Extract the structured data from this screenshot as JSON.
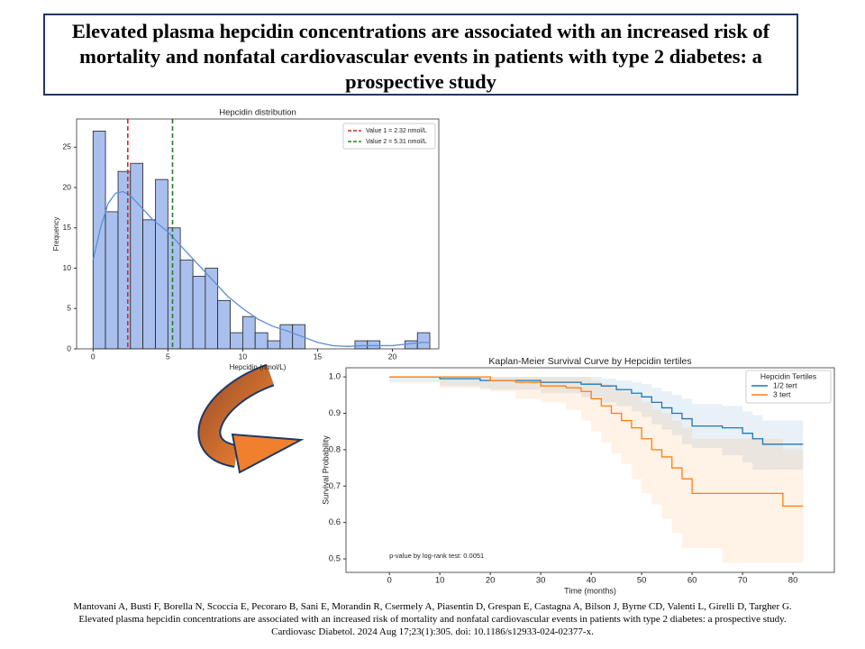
{
  "header": {
    "title": "Elevated plasma hepcidin concentrations are associated with an increased risk of mortality and nonfatal cardiovascular events in patients with type 2 diabetes: a prospective study"
  },
  "chart_data": [
    {
      "type": "histogram",
      "title": "Hepcidin distribution",
      "x_label": "Hepcidin (nmol/L)",
      "y_label": "Frequency",
      "bins": [
        0,
        0.83,
        1.67,
        2.5,
        3.33,
        4.17,
        5,
        5.83,
        6.67,
        7.5,
        8.33,
        9.17,
        10,
        10.83,
        11.67,
        12.5,
        13.33,
        14.17,
        15,
        15.83,
        16.67,
        17.5,
        18.33,
        19.17,
        20,
        20.83,
        21.67,
        22.5
      ],
      "values": [
        27,
        17,
        22,
        23,
        16,
        21,
        15,
        11,
        9,
        10,
        6,
        2,
        4,
        2,
        1,
        3,
        3,
        0,
        0,
        0,
        0,
        1,
        1,
        0,
        0,
        1,
        2
      ],
      "color": "#a9c0ee",
      "edge_color": "#222222",
      "kde": {
        "color": "#5b8fd8",
        "x": [
          0,
          0.5,
          1,
          1.5,
          2,
          2.5,
          3,
          3.5,
          4,
          5,
          6,
          7,
          8,
          9,
          10,
          11,
          12,
          13,
          14,
          15,
          16,
          17,
          18,
          19,
          20,
          21,
          22,
          22.5
        ],
        "values": [
          11,
          15,
          18,
          19.3,
          19.5,
          19,
          18,
          17,
          16,
          14.5,
          12.5,
          10.5,
          8.5,
          6.5,
          5,
          3.7,
          2.8,
          2.2,
          1.5,
          0.8,
          0.4,
          0.3,
          0.4,
          0.4,
          0.4,
          0.6,
          0.8,
          0.8
        ]
      },
      "vlines": [
        {
          "value": 2.32,
          "label": "Value 1 = 2.32 nmol/L",
          "color": "#d62728"
        },
        {
          "value": 5.31,
          "label": "Value 2 = 5.31 nmol/L",
          "color": "#2a7a2a"
        }
      ],
      "xlim": [
        -1.1,
        23.1
      ],
      "ylim": [
        0,
        28.5
      ],
      "xticks": [
        0,
        5,
        10,
        15,
        20
      ],
      "yticks": [
        0,
        5,
        10,
        15,
        20,
        25
      ],
      "legend": "upper right"
    },
    {
      "type": "line",
      "step": true,
      "title": "Kaplan-Meier Survival Curve by Hepcidin tertiles",
      "x_label": "Time (months)",
      "y_label": "Survival Probability",
      "legend_title": "Hepcidin Tertiles",
      "legend": "upper right",
      "annotation": "p-value by log-rank test: 0.0051",
      "series": [
        {
          "name": "1/2 tert",
          "color": "#1f77b4",
          "x": [
            0,
            10,
            18,
            30,
            38,
            42,
            45,
            48,
            50,
            52,
            54,
            56,
            58,
            60,
            66,
            70,
            72,
            74,
            82
          ],
          "values": [
            1.0,
            0.995,
            0.99,
            0.985,
            0.98,
            0.975,
            0.965,
            0.955,
            0.945,
            0.93,
            0.915,
            0.9,
            0.885,
            0.865,
            0.86,
            0.845,
            0.83,
            0.815,
            0.815
          ],
          "lower": [
            1.0,
            0.985,
            0.975,
            0.965,
            0.955,
            0.945,
            0.93,
            0.92,
            0.905,
            0.89,
            0.87,
            0.855,
            0.84,
            0.815,
            0.805,
            0.785,
            0.765,
            0.745,
            0.745
          ],
          "upper": [
            1.0,
            1.0,
            1.0,
            1.0,
            1.0,
            0.995,
            0.99,
            0.985,
            0.98,
            0.97,
            0.96,
            0.95,
            0.94,
            0.925,
            0.92,
            0.905,
            0.895,
            0.88,
            0.88
          ]
        },
        {
          "name": "3 tert",
          "color": "#ff7f0e",
          "x": [
            0,
            10,
            20,
            25,
            30,
            35,
            38,
            40,
            42,
            44,
            46,
            48,
            50,
            52,
            54,
            56,
            58,
            60,
            66,
            78,
            82
          ],
          "values": [
            1.0,
            1.0,
            0.99,
            0.985,
            0.975,
            0.97,
            0.96,
            0.94,
            0.92,
            0.9,
            0.88,
            0.86,
            0.83,
            0.8,
            0.78,
            0.75,
            0.72,
            0.68,
            0.68,
            0.645,
            0.645
          ],
          "lower": [
            1.0,
            1.0,
            0.97,
            0.96,
            0.94,
            0.93,
            0.91,
            0.88,
            0.85,
            0.82,
            0.79,
            0.76,
            0.72,
            0.68,
            0.65,
            0.61,
            0.57,
            0.53,
            0.53,
            0.49,
            0.49
          ],
          "upper": [
            1.0,
            1.0,
            1.0,
            1.0,
            1.0,
            1.0,
            1.0,
            0.99,
            0.98,
            0.97,
            0.96,
            0.95,
            0.93,
            0.91,
            0.9,
            0.88,
            0.86,
            0.83,
            0.83,
            0.8,
            0.8
          ]
        }
      ],
      "xlim": [
        -8.6,
        88.2
      ],
      "ylim": [
        0.463,
        1.025
      ],
      "xticks": [
        0,
        10,
        20,
        30,
        40,
        50,
        60,
        70,
        80
      ],
      "yticks": [
        {
          "value": 1,
          "label": "1.0"
        },
        0.9,
        0.8,
        0.7,
        0.6,
        0.5
      ]
    }
  ],
  "citation": {
    "lines": [
      "Mantovani A, Busti F, Borella N, Scoccia E, Pecoraro B, Sani E, Morandin R, Csermely A, Piasentin D, Grespan E, Castagna A, Bilson J, Byrne CD, Valenti L, Girelli D, Targher G.",
      "Elevated plasma hepcidin concentrations are associated with an increased risk of mortality and nonfatal cardiovascular events in patients with type 2 diabetes: a prospective study.",
      "Cardiovasc Diabetol. 2024 Aug 17;23(1):305. doi: 10.1186/s12933-024-02377-x."
    ]
  }
}
